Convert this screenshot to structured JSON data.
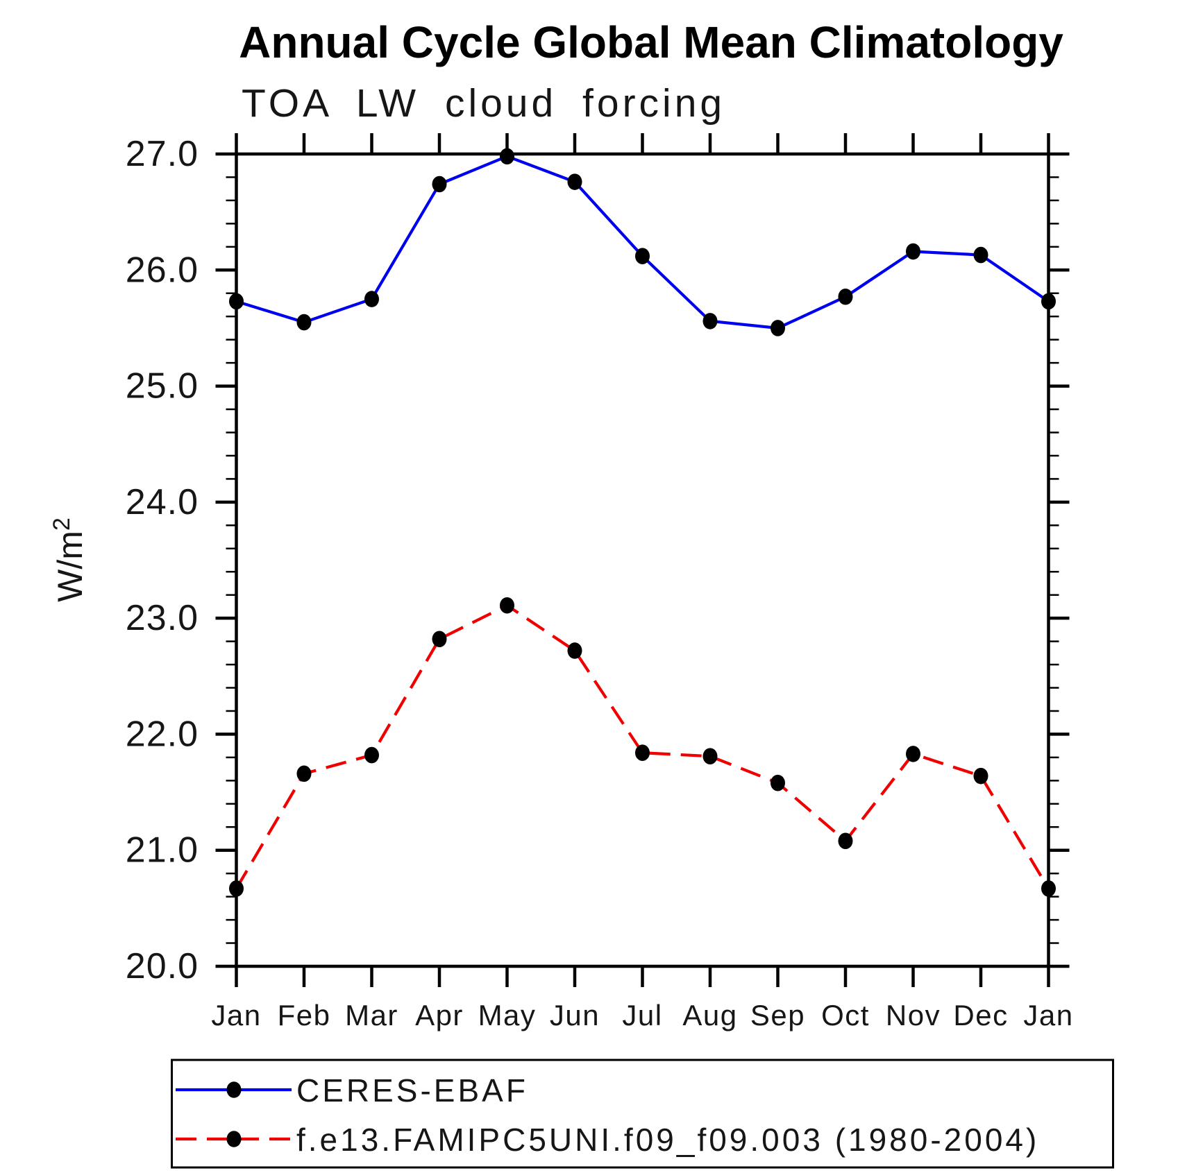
{
  "header": {
    "title": "Annual Cycle Global Mean Climatology",
    "subtitle": "TOA LW cloud forcing"
  },
  "chart_data": {
    "type": "line",
    "title": "Annual Cycle Global Mean Climatology",
    "subtitle": "TOA LW cloud forcing",
    "categories": [
      "Jan",
      "Feb",
      "Mar",
      "Apr",
      "May",
      "Jun",
      "Jul",
      "Aug",
      "Sep",
      "Oct",
      "Nov",
      "Dec",
      "Jan"
    ],
    "xlabel": "",
    "ylabel_base": "W/m",
    "ylabel_superscript": "2",
    "ylim": [
      20.0,
      27.0
    ],
    "ytick_major_step": 1.0,
    "ytick_minor_step": 0.2,
    "ytick_labels": [
      "20.0",
      "21.0",
      "22.0",
      "23.0",
      "24.0",
      "25.0",
      "26.0",
      "27.0"
    ],
    "grid": false,
    "legend_position": "bottom-left-box",
    "marker": {
      "shape": "ellipse",
      "color": "#000000"
    },
    "series": [
      {
        "name": "CERES-EBAF",
        "color": "#0000f0",
        "line_style": "solid",
        "values": [
          25.73,
          25.55,
          25.75,
          26.74,
          26.98,
          26.76,
          26.12,
          25.56,
          25.5,
          25.77,
          26.16,
          26.13,
          25.73
        ]
      },
      {
        "name": "f.e13.FAMIPC5UNI.f09_f09.003 (1980-2004)",
        "color": "#f00000",
        "line_style": "dashed",
        "values": [
          20.67,
          21.66,
          21.82,
          22.82,
          23.11,
          22.72,
          21.84,
          21.81,
          21.58,
          21.08,
          21.83,
          21.64,
          20.67
        ]
      }
    ]
  }
}
